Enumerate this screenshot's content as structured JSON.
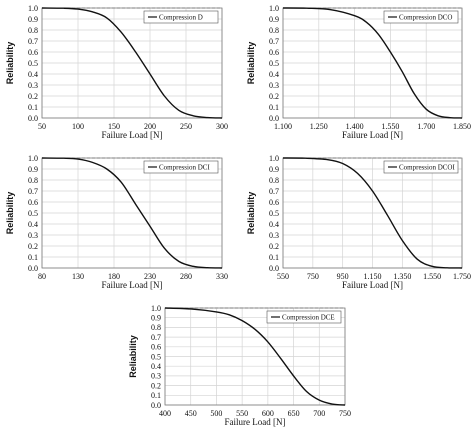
{
  "chart_data": [
    {
      "type": "line",
      "xlabel": "Failure Load [N]",
      "ylabel": "Reliability",
      "series": [
        {
          "name": "Compression D",
          "x": [
            50,
            80,
            100,
            120,
            140,
            160,
            180,
            200,
            220,
            240,
            260,
            280,
            300
          ],
          "y": [
            1.0,
            0.998,
            0.99,
            0.965,
            0.91,
            0.78,
            0.6,
            0.4,
            0.2,
            0.07,
            0.02,
            0.004,
            0.0
          ]
        }
      ],
      "xlim": [
        50,
        300
      ],
      "xticks": [
        "50",
        "100",
        "150",
        "200",
        "250",
        "300"
      ],
      "ylim": [
        0,
        1.0
      ],
      "yticks": [
        "0.0",
        "0.1",
        "0.2",
        "0.3",
        "0.4",
        "0.5",
        "0.6",
        "0.7",
        "0.8",
        "0.9",
        "1.0"
      ],
      "grid": true,
      "legend_position": "top-right"
    },
    {
      "type": "line",
      "xlabel": "Failure Load [N]",
      "ylabel": "Reliability",
      "series": [
        {
          "name": "Compression DCO",
          "x": [
            1100,
            1200,
            1300,
            1400,
            1450,
            1500,
            1550,
            1600,
            1650,
            1700,
            1750,
            1800,
            1850
          ],
          "y": [
            1.0,
            0.998,
            0.985,
            0.93,
            0.87,
            0.76,
            0.6,
            0.42,
            0.22,
            0.08,
            0.02,
            0.003,
            0.0
          ]
        }
      ],
      "xlim": [
        1100,
        1850
      ],
      "xticks": [
        "1.100",
        "1.250",
        "1.400",
        "1.550",
        "1.700",
        "1.850"
      ],
      "ylim": [
        0,
        1.0
      ],
      "yticks": [
        "0.0",
        "0.1",
        "0.2",
        "0.3",
        "0.4",
        "0.5",
        "0.6",
        "0.7",
        "0.8",
        "0.9",
        "1.0"
      ],
      "grid": true,
      "legend_position": "top-right"
    },
    {
      "type": "line",
      "xlabel": "Failure Load [N]",
      "ylabel": "Reliability",
      "series": [
        {
          "name": "Compression DCI",
          "x": [
            80,
            110,
            130,
            150,
            170,
            190,
            210,
            230,
            250,
            270,
            290,
            310,
            330
          ],
          "y": [
            1.0,
            0.998,
            0.99,
            0.96,
            0.9,
            0.78,
            0.58,
            0.38,
            0.18,
            0.06,
            0.015,
            0.003,
            0.0
          ]
        }
      ],
      "xlim": [
        80,
        330
      ],
      "xticks": [
        "80",
        "130",
        "180",
        "230",
        "280",
        "330"
      ],
      "ylim": [
        0,
        1.0
      ],
      "yticks": [
        "0.0",
        "0.1",
        "0.2",
        "0.3",
        "0.4",
        "0.5",
        "0.6",
        "0.7",
        "0.8",
        "0.9",
        "1.0"
      ],
      "grid": true,
      "legend_position": "top-right"
    },
    {
      "type": "line",
      "xlabel": "Failure Load [N]",
      "ylabel": "Reliability",
      "series": [
        {
          "name": "Compression DCOI",
          "x": [
            550,
            700,
            850,
            950,
            1050,
            1150,
            1250,
            1350,
            1450,
            1550,
            1650,
            1750
          ],
          "y": [
            1.0,
            0.998,
            0.985,
            0.95,
            0.86,
            0.7,
            0.48,
            0.25,
            0.08,
            0.015,
            0.002,
            0.0
          ]
        }
      ],
      "xlim": [
        550,
        1750
      ],
      "xticks": [
        "550",
        "750",
        "950",
        "1.150",
        "1.350",
        "1.550",
        "1.750"
      ],
      "ylim": [
        0,
        1.0
      ],
      "yticks": [
        "0.0",
        "0.1",
        "0.2",
        "0.3",
        "0.4",
        "0.5",
        "0.6",
        "0.7",
        "0.8",
        "0.9",
        "1.0"
      ],
      "grid": true,
      "legend_position": "top-right"
    },
    {
      "type": "line",
      "xlabel": "Failure Load [N]",
      "ylabel": "Reliability",
      "series": [
        {
          "name": "Compression DCE",
          "x": [
            400,
            450,
            500,
            525,
            550,
            575,
            600,
            625,
            650,
            675,
            700,
            725,
            750
          ],
          "y": [
            1.0,
            0.99,
            0.96,
            0.93,
            0.87,
            0.78,
            0.65,
            0.48,
            0.3,
            0.14,
            0.05,
            0.01,
            0.0
          ]
        }
      ],
      "xlim": [
        400,
        750
      ],
      "xticks": [
        "400",
        "450",
        "500",
        "550",
        "600",
        "650",
        "700",
        "750"
      ],
      "ylim": [
        0,
        1.0
      ],
      "yticks": [
        "0.0",
        "0.1",
        "0.2",
        "0.3",
        "0.4",
        "0.5",
        "0.6",
        "0.7",
        "0.8",
        "0.9",
        "1.0"
      ],
      "grid": true,
      "legend_position": "top-right"
    }
  ]
}
